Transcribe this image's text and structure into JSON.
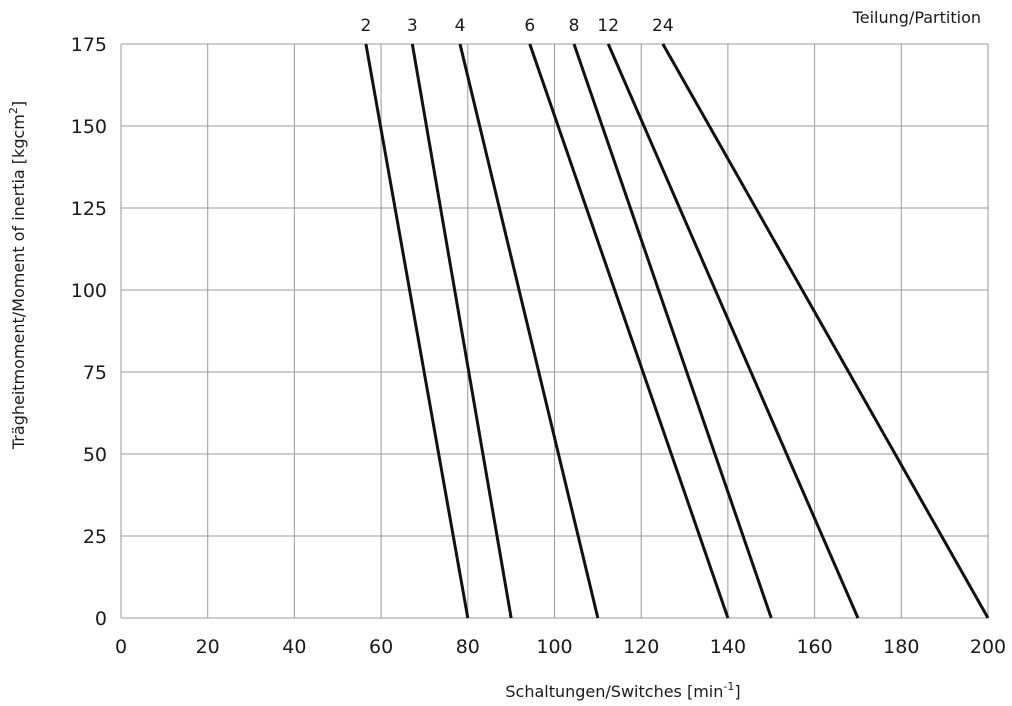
{
  "chart_data": {
    "type": "line",
    "title": "",
    "xlabel_base": "Schaltungen/Switches [min",
    "xlabel_sup": "-1",
    "xlabel_close": "]",
    "ylabel_base": "Trägheitmoment/Moment of inertia  [kgcm",
    "ylabel_sup": "2",
    "ylabel_close": "]",
    "legend_title": "Teilung/Partition",
    "xlim": [
      0,
      200
    ],
    "ylim": [
      0,
      175
    ],
    "x_ticks": [
      0,
      20,
      40,
      60,
      80,
      100,
      120,
      140,
      160,
      180,
      200
    ],
    "y_ticks": [
      0,
      25,
      50,
      75,
      100,
      125,
      150,
      175
    ],
    "grid": true,
    "series": [
      {
        "name": "2",
        "x": [
          56.5,
          80
        ],
        "y": [
          175,
          0
        ]
      },
      {
        "name": "3",
        "x": [
          67.2,
          90
        ],
        "y": [
          175,
          0
        ]
      },
      {
        "name": "4",
        "x": [
          78.2,
          110
        ],
        "y": [
          175,
          0
        ]
      },
      {
        "name": "6",
        "x": [
          94.3,
          140
        ],
        "y": [
          175,
          0
        ]
      },
      {
        "name": "8",
        "x": [
          104.5,
          150
        ],
        "y": [
          175,
          0
        ]
      },
      {
        "name": "12",
        "x": [
          112.4,
          170
        ],
        "y": [
          175,
          0
        ]
      },
      {
        "name": "24",
        "x": [
          125,
          200
        ],
        "y": [
          175,
          0
        ]
      }
    ]
  }
}
